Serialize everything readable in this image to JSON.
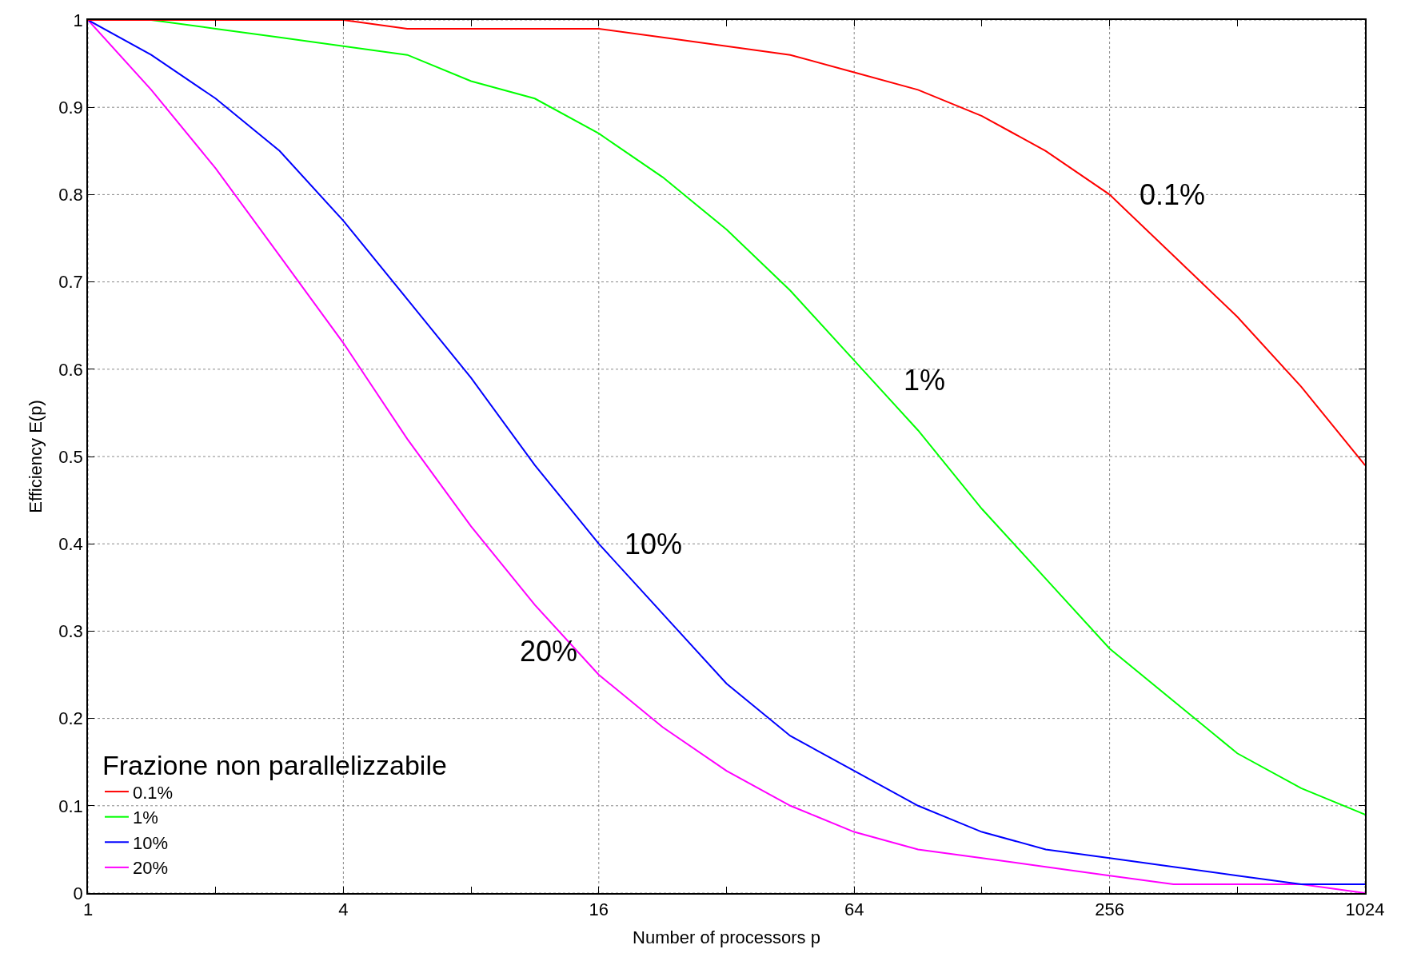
{
  "chart_data": {
    "type": "line",
    "xlabel": "Number of processors p",
    "ylabel": "Efficiency E(p)",
    "legend_title": "Frazione non parallelizzabile",
    "legend": "bottom left",
    "grid": true,
    "log": "x",
    "line_style": "solid",
    "marker": "none",
    "x": [
      1,
      1.41,
      2,
      2.83,
      4,
      5.66,
      8,
      11.31,
      16,
      22.63,
      32,
      45.25,
      64,
      90.51,
      128,
      181.02,
      256,
      362.04,
      512,
      724.08,
      1024
    ],
    "xlim": [
      1,
      1024
    ],
    "xticks": [
      1,
      {
        "value": 2,
        "label": null
      },
      4,
      {
        "value": 8,
        "label": null
      },
      16,
      {
        "value": 32,
        "label": null
      },
      64,
      {
        "value": 128,
        "label": null
      },
      256,
      {
        "value": 512,
        "label": null
      },
      1024
    ],
    "ylim": [
      0,
      1
    ],
    "yticks": [
      0,
      0.1,
      0.2,
      0.3,
      0.4,
      0.5,
      0.6,
      0.7,
      0.8,
      0.9,
      1
    ],
    "series": [
      {
        "name": "0.1%",
        "color": "#ff0000",
        "values": [
          1,
          1,
          1,
          1,
          1,
          0.99,
          0.99,
          0.99,
          0.99,
          0.98,
          0.97,
          0.96,
          0.94,
          0.92,
          0.89,
          0.85,
          0.8,
          0.73,
          0.66,
          0.58,
          0.49
        ]
      },
      {
        "name": "1%",
        "color": "#00ff00",
        "values": [
          1,
          1,
          0.99,
          0.98,
          0.97,
          0.96,
          0.93,
          0.91,
          0.87,
          0.82,
          0.76,
          0.69,
          0.61,
          0.53,
          0.44,
          0.36,
          0.28,
          0.22,
          0.16,
          0.12,
          0.09
        ]
      },
      {
        "name": "10%",
        "color": "#0000ff",
        "values": [
          1,
          0.96,
          0.91,
          0.85,
          0.77,
          0.68,
          0.59,
          0.49,
          0.4,
          0.32,
          0.24,
          0.18,
          0.14,
          0.1,
          0.07,
          0.05,
          0.04,
          0.03,
          0.02,
          0.01,
          0.01
        ]
      },
      {
        "name": "20%",
        "color": "#ff00ff",
        "values": [
          1,
          0.92,
          0.83,
          0.73,
          0.63,
          0.52,
          0.42,
          0.33,
          0.25,
          0.19,
          0.14,
          0.1,
          0.07,
          0.05,
          0.04,
          0.03,
          0.02,
          0.01,
          0.01,
          0.01,
          0
        ]
      }
    ],
    "annotations": [
      "0.1%",
      "1%",
      "10%",
      "20%"
    ]
  }
}
